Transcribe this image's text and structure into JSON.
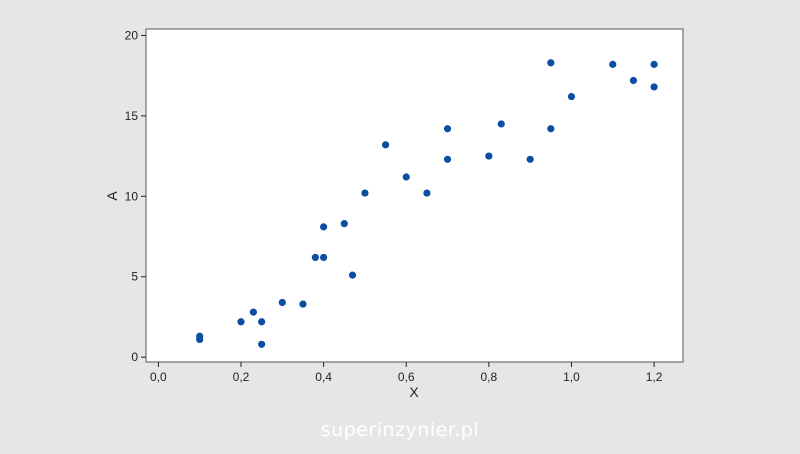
{
  "watermark": "superinzynier.pl",
  "colors": {
    "background": "#e6e6e6",
    "plot_area": "#ffffff",
    "marker": "#0b4ea2",
    "axis": "#222222"
  },
  "chart_data": {
    "type": "scatter",
    "title": "",
    "xlabel": "X",
    "ylabel": "A",
    "xlim": [
      -0.03,
      1.27
    ],
    "ylim": [
      -0.3,
      20.4
    ],
    "x_ticks": [
      0.0,
      0.2,
      0.4,
      0.6,
      0.8,
      1.0,
      1.2
    ],
    "x_tick_labels": [
      "0,0",
      "0,2",
      "0,4",
      "0,6",
      "0,8",
      "1,0",
      "1,2"
    ],
    "y_ticks": [
      0,
      5,
      10,
      15,
      20
    ],
    "y_tick_labels": [
      "0",
      "5",
      "10",
      "15",
      "20"
    ],
    "grid": false,
    "legend": "none",
    "series": [
      {
        "x": [
          0.1,
          0.1,
          0.2,
          0.23,
          0.25,
          0.25,
          0.3,
          0.35,
          0.38,
          0.4,
          0.4,
          0.45,
          0.47,
          0.5,
          0.55,
          0.6,
          0.65,
          0.7,
          0.7,
          0.8,
          0.83,
          0.9,
          0.95,
          0.95,
          1.0,
          1.1,
          1.15,
          1.2,
          1.2
        ],
        "y": [
          1.3,
          1.1,
          2.2,
          2.8,
          2.2,
          0.8,
          3.4,
          3.3,
          6.2,
          6.2,
          8.1,
          8.3,
          5.1,
          10.2,
          13.2,
          11.2,
          10.2,
          14.2,
          12.3,
          12.5,
          14.5,
          12.3,
          18.3,
          14.2,
          16.2,
          18.2,
          17.2,
          18.2,
          16.8
        ]
      }
    ]
  }
}
